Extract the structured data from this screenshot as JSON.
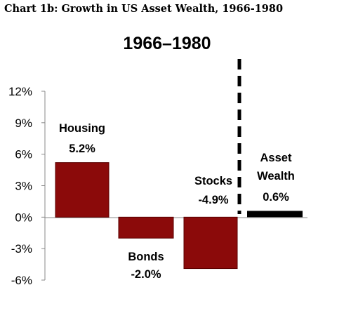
{
  "header": {
    "text": "Chart 1b:  Growth in US Asset Wealth, 1966-1980"
  },
  "chart_data": {
    "type": "bar",
    "title": "1966–1980",
    "xlabel": "",
    "ylabel": "",
    "ylim": [
      -6,
      12
    ],
    "yticks": [
      12,
      9,
      6,
      3,
      0,
      -3,
      -6
    ],
    "ytick_labels": [
      "12%",
      "9%",
      "6%",
      "3%",
      "0%",
      "-3%",
      "-6%"
    ],
    "grid": false,
    "categories": [
      "Housing",
      "Bonds",
      "Stocks",
      "Asset Wealth"
    ],
    "values": [
      5.2,
      -2.0,
      -4.9,
      0.6
    ],
    "value_labels": [
      "5.2%",
      "-2.0%",
      "-4.9%",
      "0.6%"
    ],
    "category_label_lines": [
      [
        "Housing"
      ],
      [
        "Bonds"
      ],
      [
        "Stocks"
      ],
      [
        "Asset",
        "Wealth"
      ]
    ],
    "bar_colors": [
      "#8b0a0a",
      "#8b0a0a",
      "#8b0a0a",
      "#000000"
    ],
    "separator": {
      "style": "dashed",
      "between": "Stocks|Asset Wealth"
    }
  }
}
